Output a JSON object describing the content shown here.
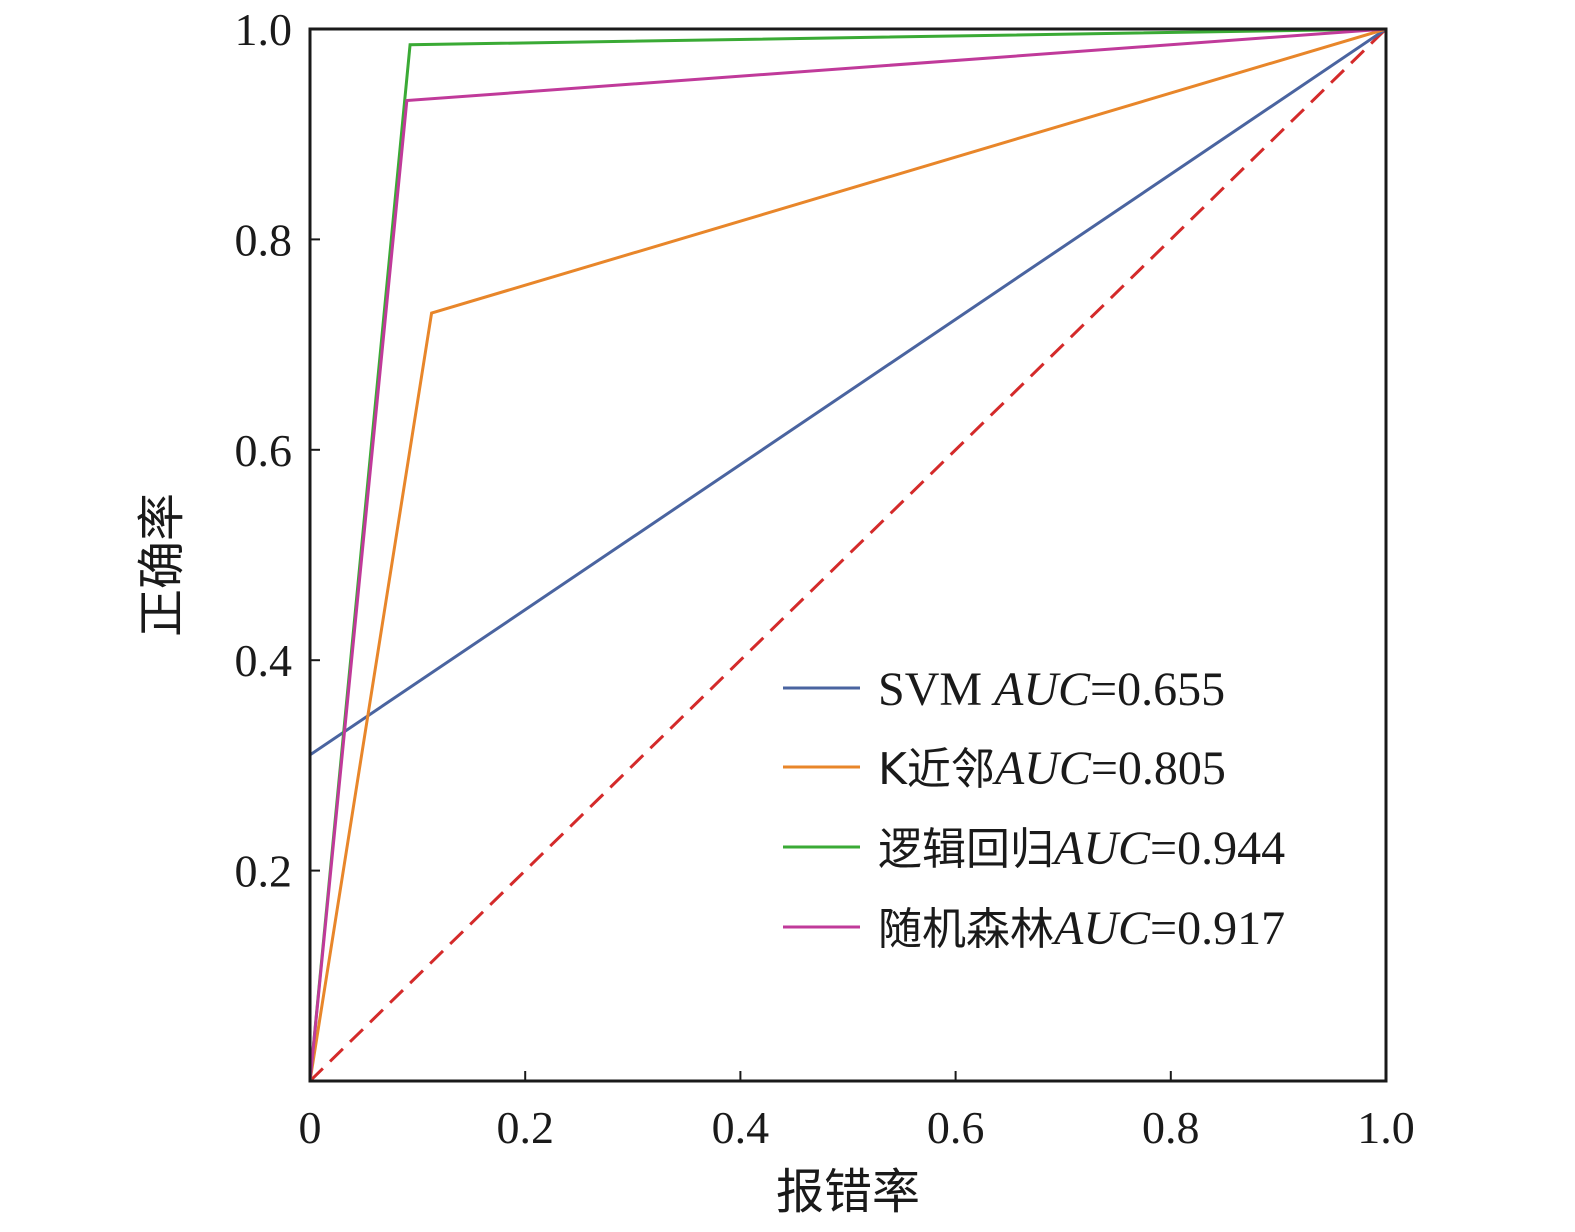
{
  "chart_data": {
    "type": "line",
    "xlabel": "报错率",
    "ylabel": "正确率",
    "xlim": [
      0,
      1
    ],
    "ylim": [
      0,
      1
    ],
    "x_ticks": [
      0,
      0.2,
      0.4,
      0.6,
      0.8,
      1.0
    ],
    "x_tick_labels": [
      "0",
      "0.2",
      "0.4",
      "0.6",
      "0.8",
      "1.0"
    ],
    "y_ticks": [
      0.2,
      0.4,
      0.6,
      0.8,
      1.0
    ],
    "y_tick_labels": [
      "0.2",
      "0.4",
      "0.6",
      "0.8",
      "1.0"
    ],
    "legend_position": "bottom-right",
    "grid": false,
    "series": [
      {
        "name": "SVM",
        "auc_label": "AUC",
        "auc_value": "=0.655",
        "color": "#4a64a0",
        "points": [
          [
            0,
            0.31
          ],
          [
            1.0,
            1.0
          ]
        ]
      },
      {
        "name": "K近邻",
        "auc_label": "AUC",
        "auc_value": "=0.805",
        "color": "#e8862a",
        "points": [
          [
            0,
            0
          ],
          [
            0.113,
            0.73
          ],
          [
            1.0,
            1.0
          ]
        ]
      },
      {
        "name": "逻辑回归",
        "auc_label": "AUC",
        "auc_value": "=0.944",
        "color": "#3aaa35",
        "points": [
          [
            0,
            0
          ],
          [
            0.093,
            0.985
          ],
          [
            1.0,
            1.0
          ]
        ]
      },
      {
        "name": "随机森林",
        "auc_label": "AUC",
        "auc_value": "=0.917",
        "color": "#c03a9a",
        "points": [
          [
            0,
            0
          ],
          [
            0.09,
            0.932
          ],
          [
            1.0,
            1.0
          ]
        ]
      }
    ],
    "reference_line": {
      "color": "#d42a2a",
      "style": "dashed",
      "points": [
        [
          0,
          0
        ],
        [
          1,
          1
        ]
      ]
    }
  }
}
